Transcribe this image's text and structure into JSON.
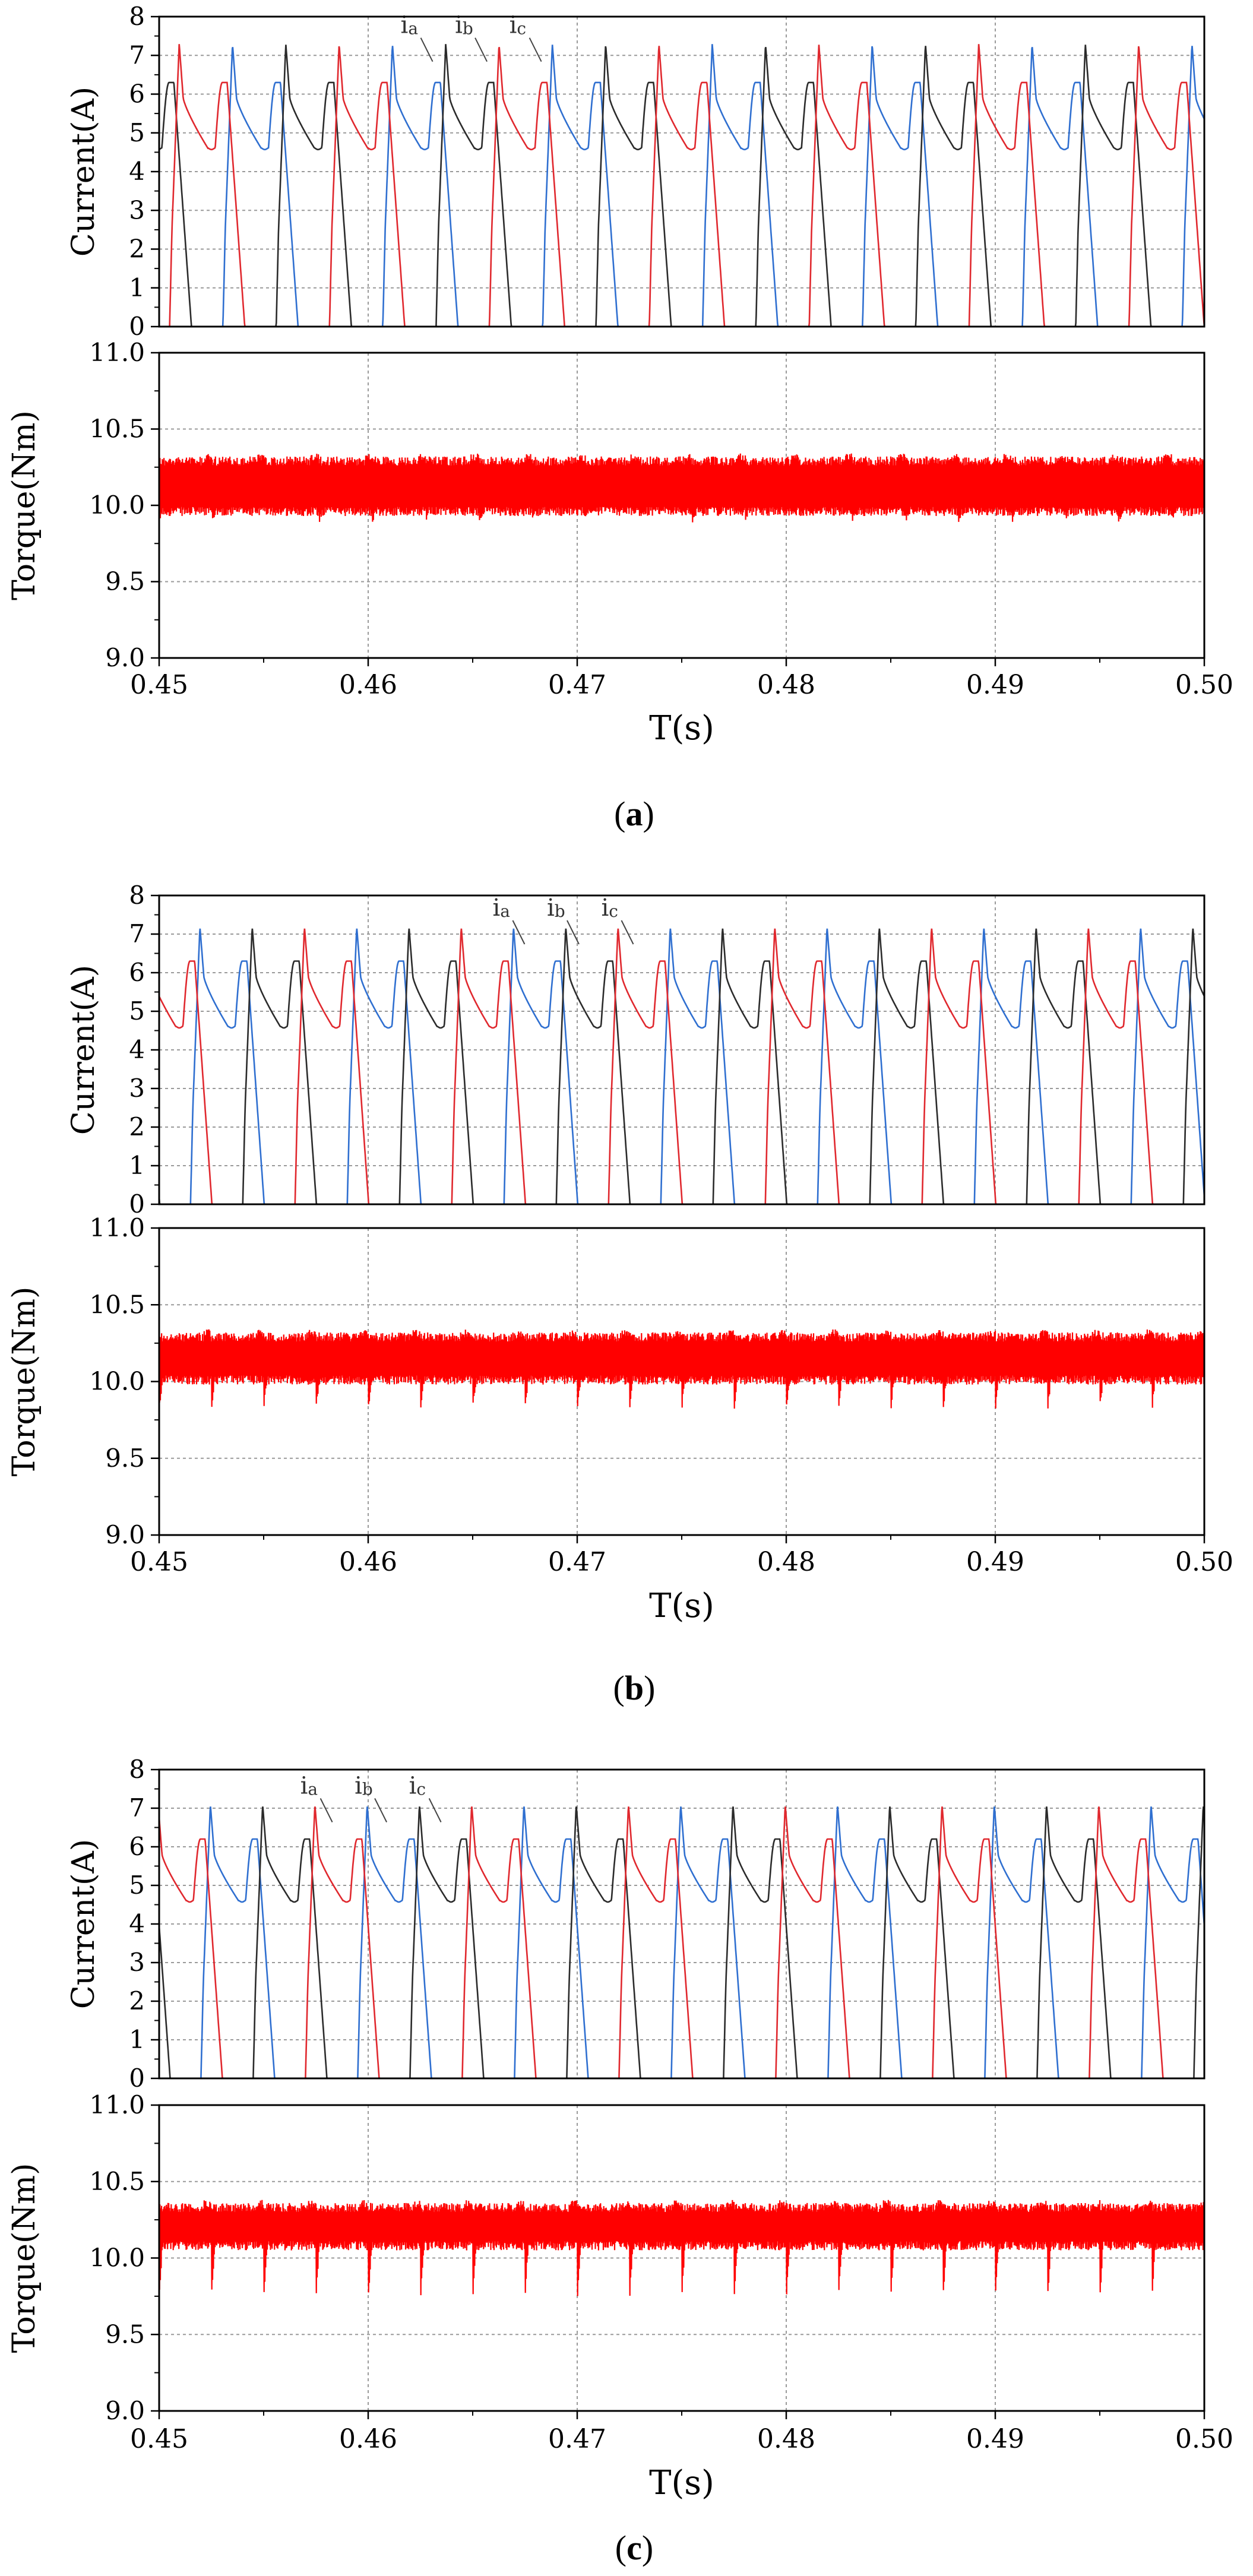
{
  "colors": {
    "phase_a": "#e0282e",
    "phase_b": "#2f6fd0",
    "phase_c": "#2b2b2b",
    "torque": "#ff0000",
    "grid": "#9a9a9a",
    "axis": "#000000"
  },
  "chart_data": [
    {
      "type": "line",
      "subfigure": "a",
      "caption": "a",
      "x_ticks": [
        "0.45",
        "0.46",
        "0.47",
        "0.48",
        "0.49",
        "0.50"
      ],
      "xlim": [
        0.45,
        0.5
      ],
      "xlabel": "T(s)",
      "current": {
        "ylabel": "Current(A)",
        "ylim": [
          0,
          8
        ],
        "y_ticks": [
          "0",
          "1",
          "2",
          "3",
          "4",
          "5",
          "6",
          "7",
          "8"
        ],
        "period_s": 0.00765,
        "phase_start_s": 0.4505,
        "spike_peak_A": 7.3,
        "hump_peak_A": 6.3,
        "flat_A": 4.6,
        "legend": [
          {
            "name": "ia",
            "base": "i",
            "sub": "a",
            "x": 0.4628,
            "y": 7.3
          },
          {
            "name": "ib",
            "base": "i",
            "sub": "b",
            "x": 0.4654,
            "y": 7.3
          },
          {
            "name": "ic",
            "base": "i",
            "sub": "c",
            "x": 0.468,
            "y": 7.3
          }
        ]
      },
      "torque": {
        "ylabel": "Torque(Nm)",
        "ylim": [
          9.0,
          11.0
        ],
        "y_ticks": [
          "9.0",
          "9.5",
          "10.0",
          "10.5",
          "11.0"
        ],
        "mean_Nm": 10.12,
        "upper_Nm": 10.32,
        "lower_Nm": 9.93,
        "dip_Nm": 9.88,
        "dip_period_s": 0.00255
      }
    },
    {
      "type": "line",
      "subfigure": "b",
      "caption": "b",
      "x_ticks": [
        "0.45",
        "0.46",
        "0.47",
        "0.48",
        "0.49",
        "0.50"
      ],
      "xlim": [
        0.45,
        0.5
      ],
      "xlabel": "T(s)",
      "current": {
        "ylabel": "Current(A)",
        "ylim": [
          0,
          8
        ],
        "y_ticks": [
          "0",
          "1",
          "2",
          "3",
          "4",
          "5",
          "6",
          "7",
          "8"
        ],
        "period_s": 0.0075,
        "phase_start_s": 0.449,
        "spike_peak_A": 7.2,
        "hump_peak_A": 6.3,
        "flat_A": 4.6,
        "legend": [
          {
            "name": "ia",
            "base": "i",
            "sub": "a",
            "x": 0.4672,
            "y": 7.2
          },
          {
            "name": "ib",
            "base": "i",
            "sub": "b",
            "x": 0.4698,
            "y": 7.2
          },
          {
            "name": "ic",
            "base": "i",
            "sub": "c",
            "x": 0.4724,
            "y": 7.2
          }
        ]
      },
      "torque": {
        "ylabel": "Torque(Nm)",
        "ylim": [
          9.0,
          11.0
        ],
        "y_ticks": [
          "9.0",
          "9.5",
          "10.0",
          "10.5",
          "11.0"
        ],
        "mean_Nm": 10.12,
        "upper_Nm": 10.32,
        "lower_Nm": 9.98,
        "dip_Nm": 9.8,
        "dip_period_s": 0.0025
      }
    },
    {
      "type": "line",
      "subfigure": "c",
      "caption": "c",
      "x_ticks": [
        "0.45",
        "0.46",
        "0.47",
        "0.48",
        "0.49",
        "0.50"
      ],
      "xlim": [
        0.45,
        0.5
      ],
      "xlabel": "T(s)",
      "current": {
        "ylabel": "Current(A)",
        "ylim": [
          0,
          8
        ],
        "y_ticks": [
          "0",
          "1",
          "2",
          "3",
          "4",
          "5",
          "6",
          "7",
          "8"
        ],
        "period_s": 0.0075,
        "phase_start_s": 0.4495,
        "spike_peak_A": 7.1,
        "hump_peak_A": 6.2,
        "flat_A": 4.6,
        "legend": [
          {
            "name": "ia",
            "base": "i",
            "sub": "a",
            "x": 0.458,
            "y": 7.1
          },
          {
            "name": "ib",
            "base": "i",
            "sub": "b",
            "x": 0.4606,
            "y": 7.1
          },
          {
            "name": "ic",
            "base": "i",
            "sub": "c",
            "x": 0.4632,
            "y": 7.1
          }
        ]
      },
      "torque": {
        "ylabel": "Torque(Nm)",
        "ylim": [
          9.0,
          11.0
        ],
        "y_ticks": [
          "9.0",
          "9.5",
          "10.0",
          "10.5",
          "11.0"
        ],
        "mean_Nm": 10.2,
        "upper_Nm": 10.36,
        "lower_Nm": 10.05,
        "dip_Nm": 9.7,
        "dip_period_s": 0.0025
      }
    }
  ]
}
